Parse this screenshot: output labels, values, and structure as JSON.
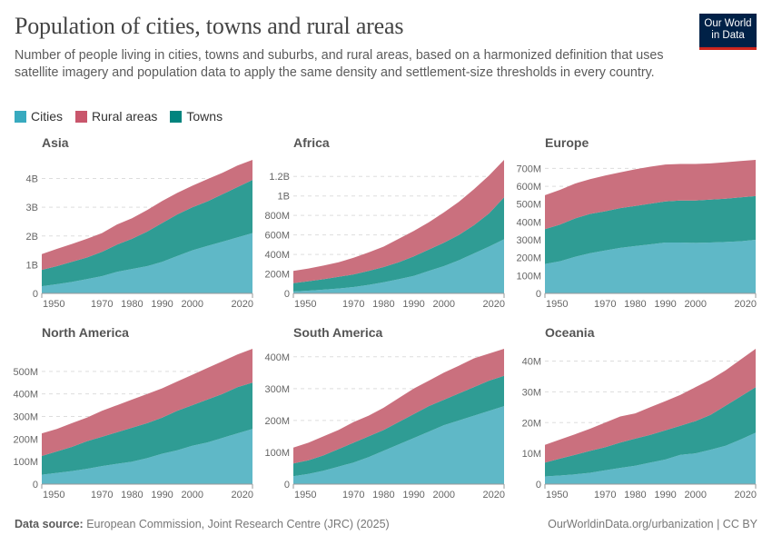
{
  "title": "Population of cities, towns and rural areas",
  "subtitle": "Number of people living in cities, towns and suburbs, and rural areas, based on a harmonized definition that uses satellite imagery and population data to apply the same density and settlement-size thresholds in every country.",
  "logo": "Our World in Data",
  "legend": [
    {
      "label": "Cities",
      "color": "#38aabf"
    },
    {
      "label": "Rural areas",
      "color": "#c9566c"
    },
    {
      "label": "Towns",
      "color": "#00847e"
    }
  ],
  "footer": {
    "source_label": "Data source:",
    "source": "European Commission, Joint Research Centre (JRC) (2025)",
    "link": "OurWorldinData.org/urbanization | CC BY"
  },
  "colors": {
    "cities": "#5fb8c7",
    "towns": "#2f9c94",
    "rural": "#ca707e"
  },
  "chart_data": [
    {
      "type": "area",
      "stacked": true,
      "title": "Asia",
      "unit": "million",
      "x": [
        1950,
        1955,
        1960,
        1965,
        1970,
        1975,
        1980,
        1985,
        1990,
        1995,
        2000,
        2005,
        2010,
        2015,
        2020
      ],
      "xticks": [
        "1950",
        "1970",
        "1980",
        "1990",
        "2000",
        "2020"
      ],
      "yticks": [
        {
          "v": 0,
          "label": "0"
        },
        {
          "v": 1000,
          "label": "1B"
        },
        {
          "v": 2000,
          "label": "2B"
        },
        {
          "v": 3000,
          "label": "3B"
        },
        {
          "v": 4000,
          "label": "4B"
        }
      ],
      "series": [
        {
          "name": "Cities",
          "values": [
            250,
            320,
            400,
            500,
            600,
            750,
            850,
            950,
            1100,
            1300,
            1500,
            1650,
            1800,
            1950,
            2100
          ]
        },
        {
          "name": "Towns",
          "values": [
            570,
            630,
            700,
            750,
            850,
            950,
            1050,
            1200,
            1350,
            1450,
            1500,
            1550,
            1650,
            1750,
            1850
          ]
        },
        {
          "name": "Rural areas",
          "values": [
            550,
            600,
            620,
            650,
            650,
            700,
            720,
            750,
            770,
            750,
            750,
            780,
            750,
            750,
            700
          ]
        }
      ]
    },
    {
      "type": "area",
      "stacked": true,
      "title": "Africa",
      "unit": "million",
      "x": [
        1950,
        1955,
        1960,
        1965,
        1970,
        1975,
        1980,
        1985,
        1990,
        1995,
        2000,
        2005,
        2010,
        2015,
        2020
      ],
      "xticks": [
        "1950",
        "1970",
        "1980",
        "1990",
        "2000",
        "2020"
      ],
      "yticks": [
        {
          "v": 0,
          "label": "0"
        },
        {
          "v": 200,
          "label": "200M"
        },
        {
          "v": 400,
          "label": "400M"
        },
        {
          "v": 600,
          "label": "600M"
        },
        {
          "v": 800,
          "label": "800M"
        },
        {
          "v": 1000,
          "label": "1B"
        },
        {
          "v": 1200,
          "label": "1.2B"
        }
      ],
      "series": [
        {
          "name": "Cities",
          "values": [
            20,
            28,
            38,
            50,
            65,
            88,
            115,
            145,
            180,
            230,
            280,
            340,
            410,
            480,
            555
          ]
        },
        {
          "name": "Towns",
          "values": [
            85,
            97,
            107,
            120,
            130,
            142,
            155,
            175,
            200,
            220,
            240,
            260,
            290,
            340,
            430
          ]
        },
        {
          "name": "Rural areas",
          "values": [
            125,
            130,
            140,
            150,
            170,
            190,
            210,
            240,
            260,
            280,
            310,
            340,
            370,
            390,
            385
          ]
        }
      ]
    },
    {
      "type": "area",
      "stacked": true,
      "title": "Europe",
      "unit": "million",
      "x": [
        1950,
        1955,
        1960,
        1965,
        1970,
        1975,
        1980,
        1985,
        1990,
        1995,
        2000,
        2005,
        2010,
        2015,
        2020
      ],
      "xticks": [
        "1950",
        "1970",
        "1980",
        "1990",
        "2000",
        "2020"
      ],
      "yticks": [
        {
          "v": 0,
          "label": "0"
        },
        {
          "v": 100,
          "label": "100M"
        },
        {
          "v": 200,
          "label": "200M"
        },
        {
          "v": 300,
          "label": "300M"
        },
        {
          "v": 400,
          "label": "400M"
        },
        {
          "v": 500,
          "label": "500M"
        },
        {
          "v": 600,
          "label": "600M"
        },
        {
          "v": 700,
          "label": "700M"
        }
      ],
      "series": [
        {
          "name": "Cities",
          "values": [
            165,
            180,
            205,
            225,
            240,
            255,
            265,
            275,
            285,
            285,
            283,
            285,
            288,
            292,
            300
          ]
        },
        {
          "name": "Towns",
          "values": [
            195,
            205,
            215,
            220,
            220,
            223,
            225,
            227,
            230,
            235,
            237,
            240,
            242,
            246,
            245
          ]
        },
        {
          "name": "Rural areas",
          "values": [
            190,
            195,
            195,
            195,
            200,
            200,
            205,
            208,
            207,
            205,
            205,
            203,
            205,
            204,
            203
          ]
        }
      ]
    },
    {
      "type": "area",
      "stacked": true,
      "title": "North America",
      "unit": "million",
      "x": [
        1950,
        1955,
        1960,
        1965,
        1970,
        1975,
        1980,
        1985,
        1990,
        1995,
        2000,
        2005,
        2010,
        2015,
        2020
      ],
      "xticks": [
        "1950",
        "1970",
        "1980",
        "1990",
        "2000",
        "2020"
      ],
      "yticks": [
        {
          "v": 0,
          "label": "0"
        },
        {
          "v": 100,
          "label": "100M"
        },
        {
          "v": 200,
          "label": "200M"
        },
        {
          "v": 300,
          "label": "300M"
        },
        {
          "v": 400,
          "label": "400M"
        },
        {
          "v": 500,
          "label": "500M"
        }
      ],
      "series": [
        {
          "name": "Cities",
          "values": [
            42,
            50,
            58,
            68,
            80,
            90,
            100,
            115,
            135,
            150,
            170,
            185,
            205,
            225,
            245
          ]
        },
        {
          "name": "Towns",
          "values": [
            83,
            95,
            107,
            122,
            130,
            140,
            150,
            155,
            160,
            175,
            180,
            190,
            195,
            205,
            205
          ]
        },
        {
          "name": "Rural areas",
          "values": [
            100,
            100,
            105,
            105,
            115,
            120,
            125,
            130,
            130,
            130,
            135,
            140,
            145,
            145,
            150
          ]
        }
      ]
    },
    {
      "type": "area",
      "stacked": true,
      "title": "South America",
      "unit": "million",
      "x": [
        1950,
        1955,
        1960,
        1965,
        1970,
        1975,
        1980,
        1985,
        1990,
        1995,
        2000,
        2005,
        2010,
        2015,
        2020
      ],
      "xticks": [
        "1950",
        "1970",
        "1980",
        "1990",
        "2000",
        "2020"
      ],
      "yticks": [
        {
          "v": 0,
          "label": "0"
        },
        {
          "v": 100,
          "label": "100M"
        },
        {
          "v": 200,
          "label": "200M"
        },
        {
          "v": 300,
          "label": "300M"
        },
        {
          "v": 400,
          "label": "400M"
        }
      ],
      "series": [
        {
          "name": "Cities",
          "values": [
            25,
            32,
            42,
            55,
            68,
            85,
            105,
            125,
            145,
            165,
            185,
            200,
            215,
            230,
            245
          ]
        },
        {
          "name": "Towns",
          "values": [
            40,
            43,
            48,
            55,
            62,
            65,
            65,
            70,
            75,
            80,
            80,
            85,
            90,
            95,
            95
          ]
        },
        {
          "name": "Rural areas",
          "values": [
            50,
            55,
            60,
            60,
            65,
            65,
            70,
            75,
            80,
            80,
            85,
            87,
            90,
            85,
            85
          ]
        }
      ]
    },
    {
      "type": "area",
      "stacked": true,
      "title": "Oceania",
      "unit": "million",
      "x": [
        1950,
        1955,
        1960,
        1965,
        1970,
        1975,
        1980,
        1985,
        1990,
        1995,
        2000,
        2005,
        2010,
        2015,
        2020
      ],
      "xticks": [
        "1950",
        "1970",
        "1980",
        "1990",
        "2000",
        "2020"
      ],
      "yticks": [
        {
          "v": 0,
          "label": "0"
        },
        {
          "v": 10,
          "label": "10M"
        },
        {
          "v": 20,
          "label": "20M"
        },
        {
          "v": 30,
          "label": "30M"
        },
        {
          "v": 40,
          "label": "40M"
        }
      ],
      "series": [
        {
          "name": "Cities",
          "values": [
            2.5,
            2.8,
            3.2,
            3.7,
            4.5,
            5.3,
            6,
            7,
            8,
            9.5,
            10,
            11.2,
            12.5,
            14.5,
            16.7
          ]
        },
        {
          "name": "Towns",
          "values": [
            4.5,
            5.5,
            6.3,
            7.1,
            7.5,
            8.2,
            8.8,
            9,
            9.5,
            9.5,
            10.5,
            11.3,
            13,
            14,
            14.8
          ]
        },
        {
          "name": "Rural areas",
          "values": [
            5.8,
            6.2,
            6.7,
            7.2,
            8,
            8.5,
            8.2,
            9,
            9.5,
            10,
            11,
            11.5,
            11.5,
            12,
            12.5
          ]
        }
      ]
    }
  ]
}
